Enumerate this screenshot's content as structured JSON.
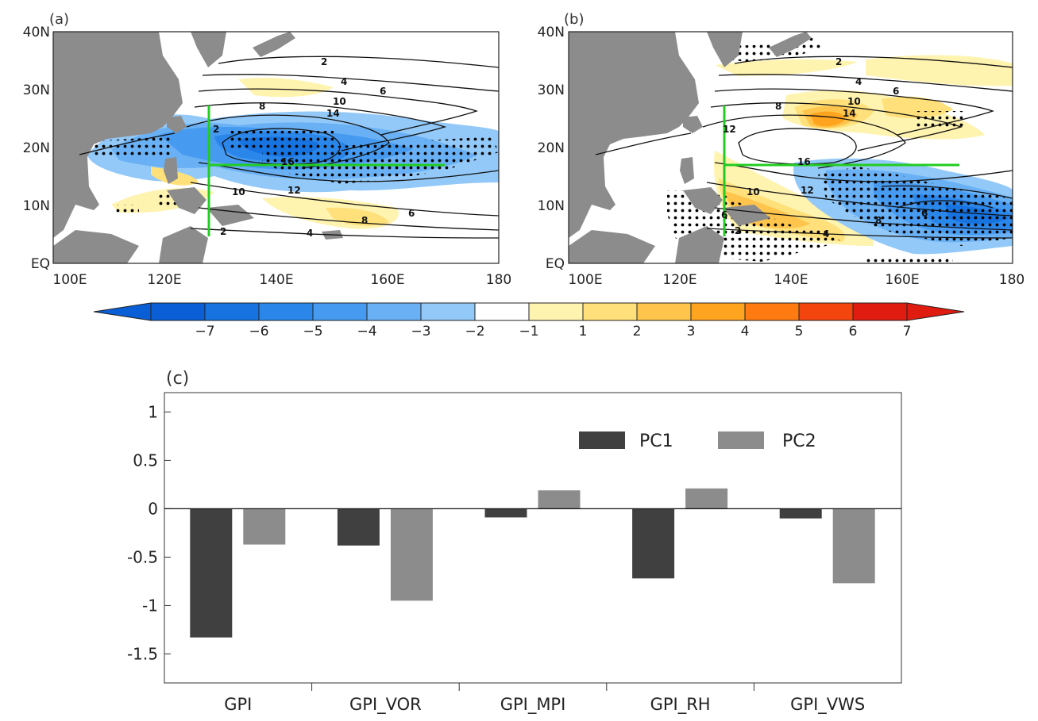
{
  "panels": {
    "a": {
      "label": "(a)"
    },
    "b": {
      "label": "(b)"
    },
    "c": {
      "label": "(c)"
    }
  },
  "map": {
    "lat_ticks": [
      "40N",
      "30N",
      "20N",
      "10N",
      "EQ"
    ],
    "lon_ticks": [
      "100E",
      "120E",
      "140E",
      "160E",
      "180"
    ],
    "contour_labels_a": [
      "2",
      "4",
      "6",
      "8",
      "10",
      "14",
      "2",
      "16",
      "10",
      "12",
      "8",
      "6",
      "4",
      "2"
    ],
    "contour_labels_b": [
      "2",
      "4",
      "6",
      "8",
      "10",
      "14",
      "12",
      "16",
      "10",
      "12",
      "8",
      "6",
      "6",
      "2",
      "4"
    ]
  },
  "colorbar": {
    "labels": [
      "−7",
      "−6",
      "−5",
      "−4",
      "−3",
      "−2",
      "−1",
      "1",
      "2",
      "3",
      "4",
      "5",
      "6",
      "7"
    ],
    "colors": [
      "#0a5fd6",
      "#1673e0",
      "#2b86ea",
      "#469af0",
      "#69b0f4",
      "#93c9f8",
      "#ffffff",
      "#fff3b0",
      "#ffe07a",
      "#ffc44c",
      "#ffa41e",
      "#ff7b12",
      "#f5450f",
      "#e01b10"
    ],
    "left_cap": "#0a5fd6",
    "right_cap": "#e01b10"
  },
  "chart_data": {
    "type": "bar",
    "title": "(c)",
    "categories": [
      "GPI",
      "GPI_VOR",
      "GPI_MPI",
      "GPI_RH",
      "GPI_VWS"
    ],
    "series": [
      {
        "name": "PC1",
        "values": [
          -1.33,
          -0.38,
          -0.09,
          -0.72,
          -0.1
        ],
        "color": "#404040"
      },
      {
        "name": "PC2",
        "values": [
          -0.37,
          -0.95,
          0.19,
          0.21,
          -0.77
        ],
        "color": "#8c8c8c"
      }
    ],
    "ylim": [
      -1.8,
      1.2
    ],
    "yticks": [
      1,
      0.5,
      0,
      -0.5,
      -1,
      -1.5
    ],
    "ytick_labels": [
      "1",
      "0.5",
      "0",
      "-0.5",
      "-1",
      "-1.5"
    ],
    "legend_position": "top-right"
  }
}
